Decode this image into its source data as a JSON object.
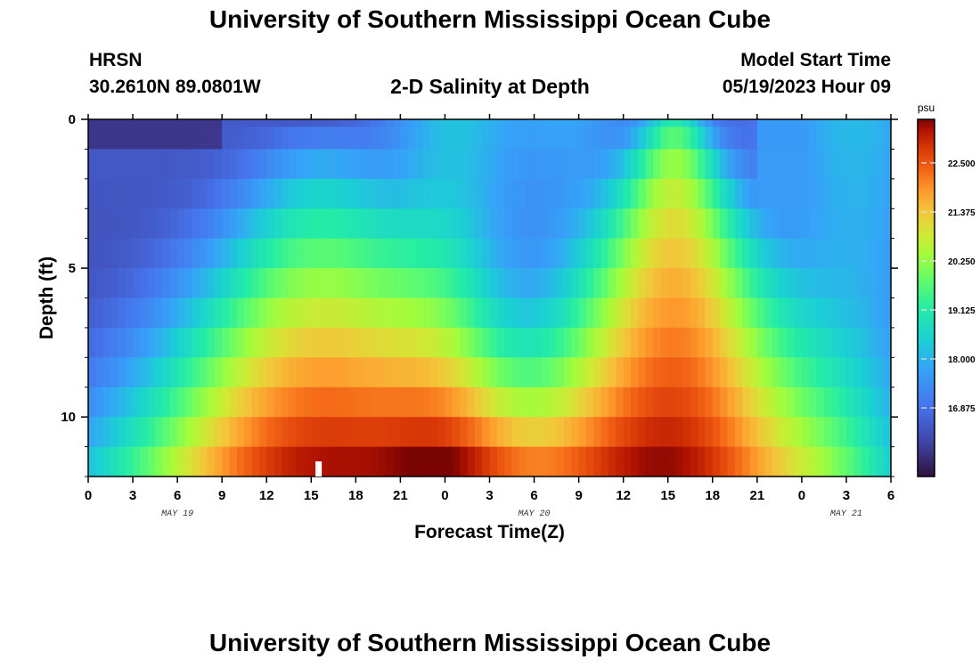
{
  "header": {
    "title": "University of Southern Mississippi Ocean Cube",
    "station": "HRSN",
    "coords": "30.2610N  89.0801W",
    "subtitle": "2-D Salinity at Depth",
    "model_start_label": "Model Start Time",
    "model_start_value": "05/19/2023 Hour 09",
    "footer_title": "University of Southern Mississippi Ocean Cube"
  },
  "chart_data": {
    "type": "heatmap",
    "title": "2-D Salinity at Depth",
    "xlabel": "Forecast Time(Z)",
    "ylabel": "Depth (ft)",
    "x_tick_labels": [
      "0",
      "3",
      "6",
      "9",
      "12",
      "15",
      "18",
      "21",
      "0",
      "3",
      "6",
      "9",
      "12",
      "15",
      "18",
      "21",
      "0",
      "3",
      "6"
    ],
    "x_date_labels": [
      {
        "label": "MAY 19",
        "at_hour": 6
      },
      {
        "label": "MAY 20",
        "at_hour": 30
      },
      {
        "label": "MAY 21",
        "at_hour": 51
      }
    ],
    "x_range_hours": [
      0,
      54
    ],
    "y_tick_labels": [
      "0",
      "5",
      "10"
    ],
    "y_range_ft": [
      0,
      12
    ],
    "depth_levels_ft": [
      0,
      0.5,
      1.5,
      2.5,
      3.5,
      4.5,
      5.5,
      6.5,
      7.5,
      8.5,
      9.5,
      10.5,
      11.5
    ],
    "colorbar": {
      "unit": "psu",
      "range": [
        15.3,
        23.5
      ],
      "tick_labels": [
        "22.500",
        "21.375",
        "20.250",
        "19.125",
        "18.000",
        "16.875"
      ],
      "tick_values": [
        22.5,
        21.375,
        20.25,
        19.125,
        18.0,
        16.875
      ]
    },
    "model_start_hour": 15.5,
    "colors": {
      "marker": "#ffffff",
      "frame": "#000000"
    }
  }
}
